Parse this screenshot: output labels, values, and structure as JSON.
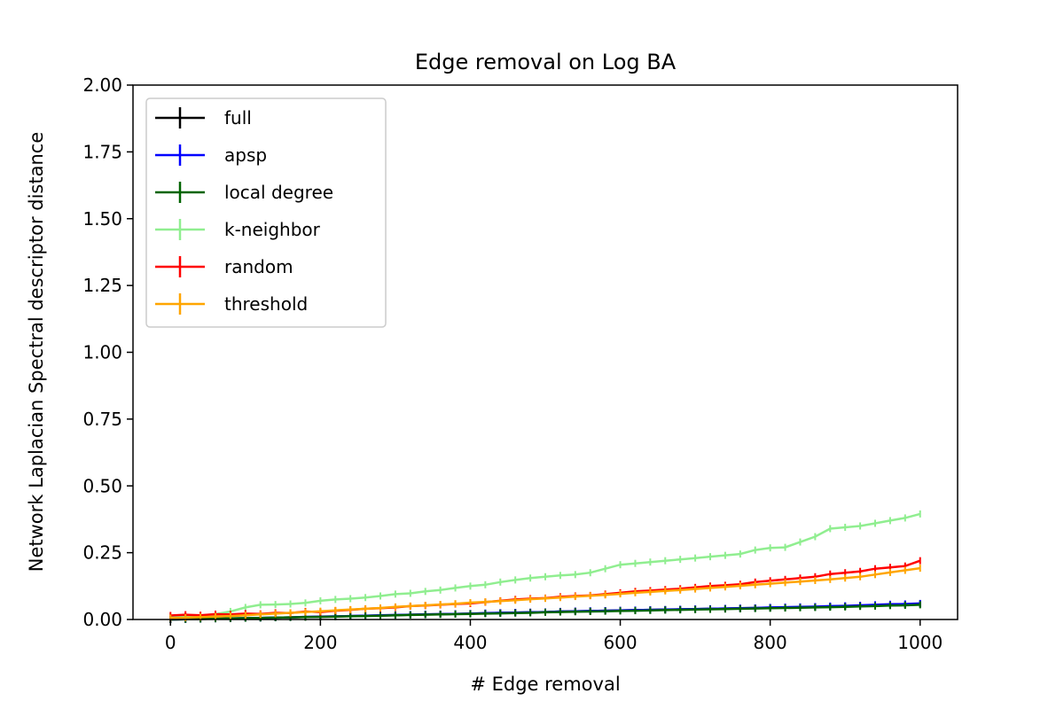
{
  "chart_data": {
    "type": "line",
    "title": "Edge removal on Log BA",
    "xlabel": "# Edge removal",
    "ylabel": "Network Laplacian Spectral descriptor distance",
    "xlim": [
      -50,
      1050
    ],
    "ylim": [
      0,
      2.0
    ],
    "xticks": [
      0,
      200,
      400,
      600,
      800,
      1000
    ],
    "yticks": [
      0.0,
      0.25,
      0.5,
      0.75,
      1.0,
      1.25,
      1.5,
      1.75,
      2.0
    ],
    "ytick_labels": [
      "0.00",
      "0.25",
      "0.50",
      "0.75",
      "1.00",
      "1.25",
      "1.50",
      "1.75",
      "2.00"
    ],
    "grid": false,
    "legend_position": "top-left",
    "x": [
      0,
      20,
      40,
      60,
      80,
      100,
      120,
      140,
      160,
      180,
      200,
      220,
      240,
      260,
      280,
      300,
      320,
      340,
      360,
      380,
      400,
      420,
      440,
      460,
      480,
      500,
      520,
      540,
      560,
      580,
      600,
      620,
      640,
      660,
      680,
      700,
      720,
      740,
      760,
      780,
      800,
      820,
      840,
      860,
      880,
      900,
      920,
      940,
      960,
      980,
      1000
    ],
    "series": [
      {
        "name": "full",
        "color": "#000000",
        "values": [
          0.0,
          0.001,
          0.002,
          0.003,
          0.004,
          0.005,
          0.006,
          0.007,
          0.008,
          0.009,
          0.01,
          0.011,
          0.013,
          0.014,
          0.015,
          0.016,
          0.018,
          0.019,
          0.02,
          0.021,
          0.022,
          0.023,
          0.025,
          0.026,
          0.027,
          0.028,
          0.03,
          0.031,
          0.032,
          0.033,
          0.034,
          0.035,
          0.036,
          0.037,
          0.038,
          0.039,
          0.04,
          0.041,
          0.042,
          0.043,
          0.044,
          0.045,
          0.046,
          0.047,
          0.048,
          0.05,
          0.051,
          0.053,
          0.055,
          0.056,
          0.058
        ]
      },
      {
        "name": "apsp",
        "color": "#0000ff",
        "values": [
          0.0,
          0.001,
          0.002,
          0.003,
          0.004,
          0.005,
          0.006,
          0.007,
          0.008,
          0.01,
          0.011,
          0.012,
          0.013,
          0.014,
          0.016,
          0.017,
          0.018,
          0.019,
          0.02,
          0.021,
          0.022,
          0.024,
          0.025,
          0.026,
          0.027,
          0.028,
          0.03,
          0.031,
          0.032,
          0.033,
          0.034,
          0.035,
          0.036,
          0.037,
          0.038,
          0.039,
          0.04,
          0.041,
          0.042,
          0.043,
          0.045,
          0.046,
          0.047,
          0.048,
          0.05,
          0.051,
          0.053,
          0.055,
          0.057,
          0.058,
          0.06
        ]
      },
      {
        "name": "local degree",
        "color": "#006400",
        "values": [
          0.0,
          0.001,
          0.002,
          0.003,
          0.004,
          0.005,
          0.006,
          0.007,
          0.008,
          0.009,
          0.01,
          0.011,
          0.012,
          0.013,
          0.014,
          0.016,
          0.017,
          0.018,
          0.019,
          0.02,
          0.021,
          0.022,
          0.023,
          0.024,
          0.025,
          0.027,
          0.028,
          0.029,
          0.03,
          0.031,
          0.032,
          0.033,
          0.034,
          0.035,
          0.036,
          0.037,
          0.038,
          0.039,
          0.04,
          0.041,
          0.042,
          0.043,
          0.044,
          0.045,
          0.046,
          0.047,
          0.049,
          0.05,
          0.052,
          0.053,
          0.055
        ]
      },
      {
        "name": "k-neighbor",
        "color": "#90ee90",
        "values": [
          0.01,
          0.012,
          0.015,
          0.02,
          0.03,
          0.045,
          0.055,
          0.056,
          0.058,
          0.062,
          0.07,
          0.075,
          0.078,
          0.082,
          0.088,
          0.095,
          0.098,
          0.105,
          0.11,
          0.118,
          0.125,
          0.13,
          0.14,
          0.148,
          0.155,
          0.16,
          0.165,
          0.168,
          0.175,
          0.19,
          0.205,
          0.21,
          0.215,
          0.22,
          0.225,
          0.23,
          0.235,
          0.24,
          0.245,
          0.26,
          0.268,
          0.27,
          0.29,
          0.31,
          0.34,
          0.345,
          0.35,
          0.36,
          0.37,
          0.38,
          0.395
        ]
      },
      {
        "name": "random",
        "color": "#ff0000",
        "values": [
          0.015,
          0.018,
          0.016,
          0.02,
          0.019,
          0.022,
          0.021,
          0.025,
          0.024,
          0.03,
          0.028,
          0.033,
          0.036,
          0.04,
          0.042,
          0.045,
          0.05,
          0.052,
          0.055,
          0.058,
          0.06,
          0.065,
          0.07,
          0.075,
          0.078,
          0.08,
          0.085,
          0.088,
          0.09,
          0.095,
          0.1,
          0.105,
          0.108,
          0.112,
          0.115,
          0.12,
          0.125,
          0.128,
          0.132,
          0.14,
          0.145,
          0.15,
          0.155,
          0.16,
          0.17,
          0.175,
          0.18,
          0.19,
          0.195,
          0.2,
          0.22
        ]
      },
      {
        "name": "threshold",
        "color": "#ffa500",
        "values": [
          0.005,
          0.007,
          0.009,
          0.011,
          0.013,
          0.016,
          0.019,
          0.022,
          0.025,
          0.028,
          0.031,
          0.034,
          0.037,
          0.04,
          0.043,
          0.047,
          0.05,
          0.053,
          0.056,
          0.059,
          0.063,
          0.066,
          0.069,
          0.072,
          0.076,
          0.079,
          0.082,
          0.086,
          0.089,
          0.092,
          0.096,
          0.1,
          0.103,
          0.107,
          0.11,
          0.114,
          0.118,
          0.122,
          0.126,
          0.13,
          0.134,
          0.138,
          0.142,
          0.146,
          0.15,
          0.155,
          0.16,
          0.168,
          0.176,
          0.184,
          0.192
        ]
      }
    ]
  }
}
